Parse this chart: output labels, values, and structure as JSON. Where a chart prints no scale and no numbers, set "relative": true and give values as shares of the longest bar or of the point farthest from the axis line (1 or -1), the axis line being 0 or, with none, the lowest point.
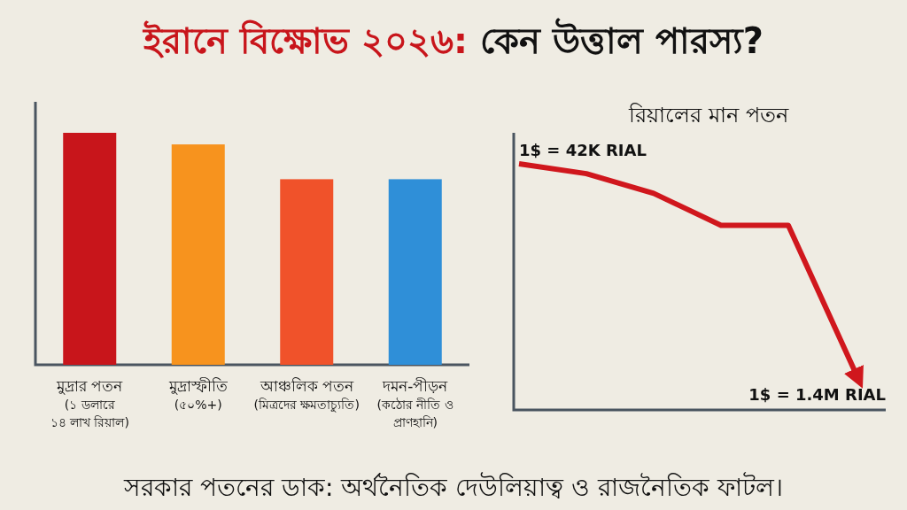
{
  "chart_data": [
    {
      "type": "bar",
      "title": "ইরানে বিক্ষোভ ২০২৬: কেন উত্তাল পারস্য?",
      "relative": true,
      "categories": [
        "মুদ্রার পতন\n(১ ডলারে\n১৪ লাখ রিয়াল)",
        "মুদ্রাস্ফীতি\n(৫০%+)",
        "আঞ্চলিক পতন\n(মিত্রদের ক্ষমতাচ্যুতি)",
        "দমন-পীড়ন\n(কঠোর নীতি ও\nপ্রাণহানি)"
      ],
      "values": [
        1,
        0.95,
        0.8,
        0.8
      ],
      "colors": [
        "#c8151b",
        "#f7931e",
        "#f0522a",
        "#2f8fd8"
      ],
      "annotations": [
        "সরকার পতনের ডাক: অর্থনৈতিক দেউলিয়াত্ব ও রাজনৈতিক ফাটল।"
      ]
    },
    {
      "type": "line",
      "title": "রিয়ালের মান পতন",
      "relative": true,
      "categories": [
        null,
        null,
        null,
        null,
        null,
        null
      ],
      "series": [
        {
          "color": "#d0171d",
          "values": [
            1,
            0.96,
            0.88,
            0.75,
            0.75,
            0.15
          ]
        }
      ],
      "annotations": [
        "1$ = 42K RIAL",
        "1$ = 1.4M RIAL"
      ]
    }
  ]
}
